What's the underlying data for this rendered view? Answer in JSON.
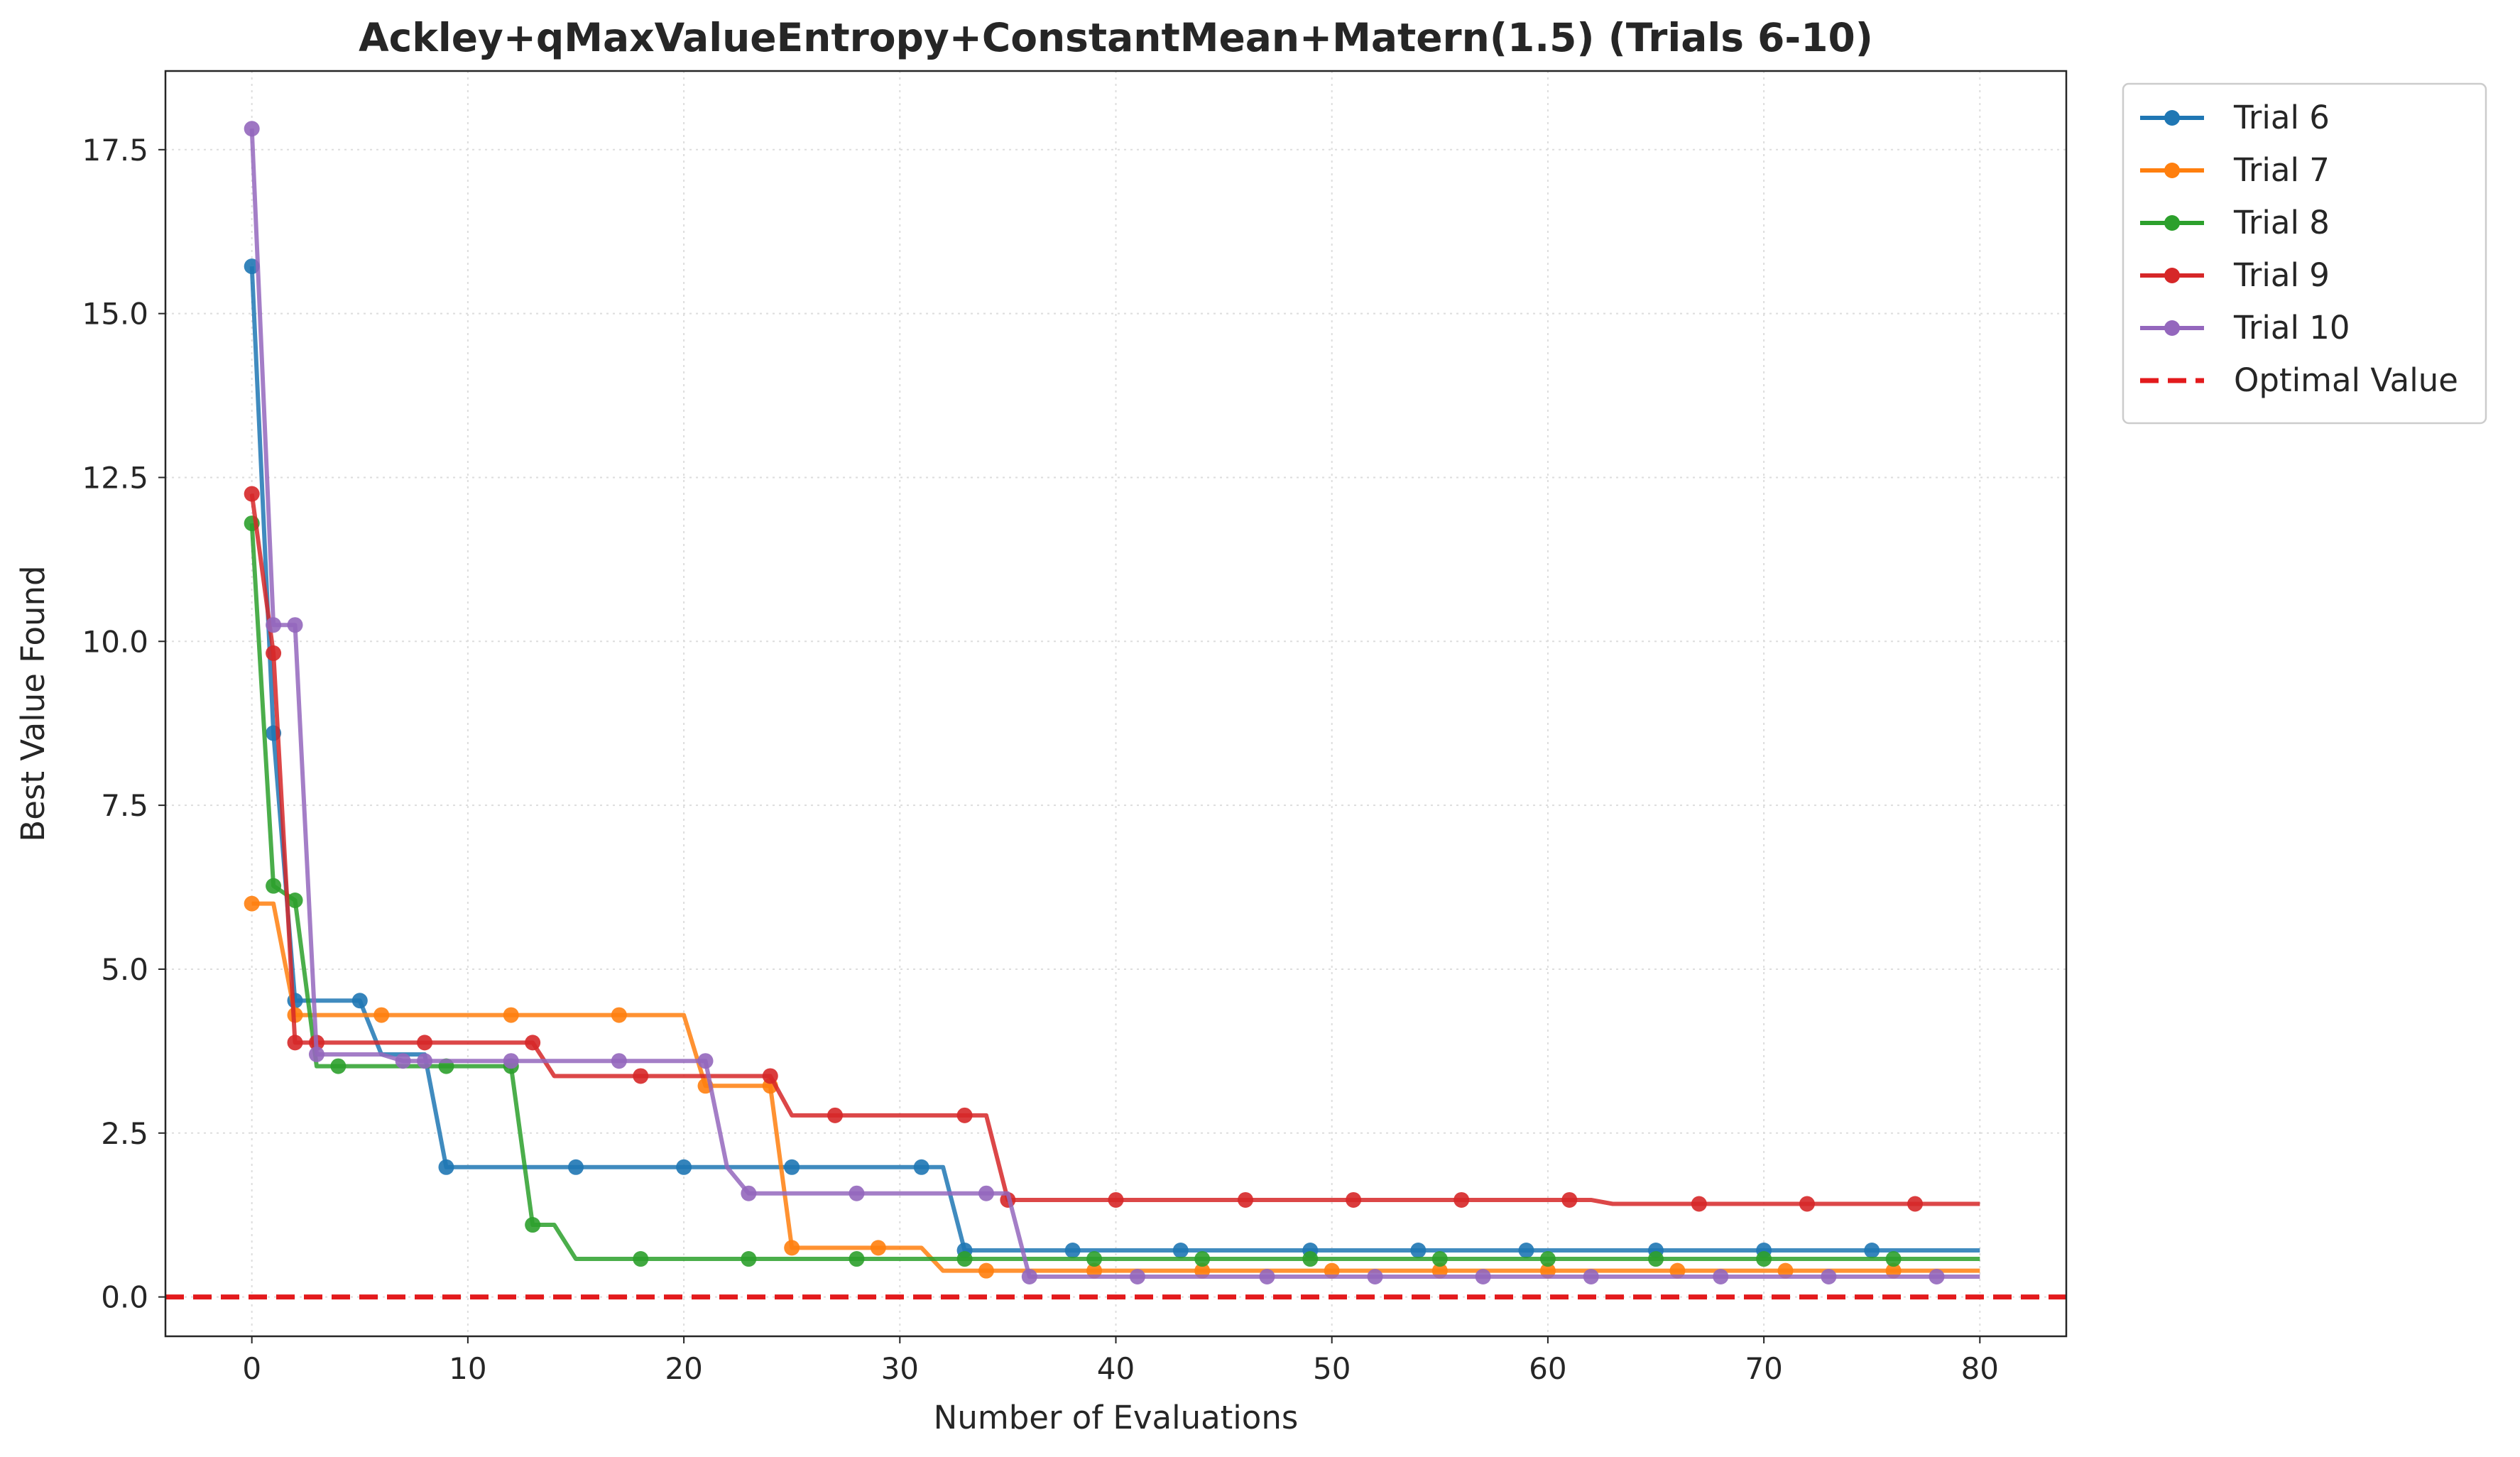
{
  "chart_data": {
    "type": "line",
    "title": "Ackley+qMaxValueEntropy+ConstantMean+Matern(1.5) (Trials 6-10)",
    "xlabel": "Number of Evaluations",
    "ylabel": "Best Value Found",
    "xlim": [
      -4,
      84
    ],
    "ylim": [
      -0.6,
      18.7
    ],
    "xticks": [
      0,
      10,
      20,
      30,
      40,
      50,
      60,
      70,
      80
    ],
    "xtick_labels": [
      "0",
      "10",
      "20",
      "30",
      "40",
      "50",
      "60",
      "70",
      "80"
    ],
    "yticks": [
      0,
      2.5,
      5,
      7.5,
      10,
      12.5,
      15,
      17.5
    ],
    "ytick_labels": [
      "0.0",
      "2.5",
      "5.0",
      "7.5",
      "10.0",
      "12.5",
      "15.0",
      "17.5"
    ],
    "grid": true,
    "legend_position": "outside-upper-right",
    "series": [
      {
        "name": "Trial 6",
        "color": "#1f77b4",
        "steps": [
          [
            0,
            15.72
          ],
          [
            1,
            8.6
          ],
          [
            2,
            4.52
          ],
          [
            6,
            3.7
          ],
          [
            9,
            1.98
          ],
          [
            33,
            0.71
          ],
          [
            80,
            0.71
          ]
        ],
        "markers": [
          0,
          1,
          2,
          5,
          9,
          15,
          20,
          25,
          31,
          33,
          38,
          43,
          49,
          54,
          59,
          65,
          70,
          75
        ]
      },
      {
        "name": "Trial 7",
        "color": "#ff7f0e",
        "steps": [
          [
            0,
            6.0
          ],
          [
            2,
            4.3
          ],
          [
            21,
            3.22
          ],
          [
            25,
            0.75
          ],
          [
            32,
            0.4
          ],
          [
            80,
            0.4
          ]
        ],
        "markers": [
          0,
          2,
          6,
          12,
          17,
          21,
          24,
          25,
          29,
          34,
          39,
          44,
          50,
          55,
          60,
          66,
          71,
          76
        ]
      },
      {
        "name": "Trial 8",
        "color": "#2ca02c",
        "steps": [
          [
            0,
            11.8
          ],
          [
            1,
            6.27
          ],
          [
            2,
            6.05
          ],
          [
            3,
            3.52
          ],
          [
            13,
            1.1
          ],
          [
            15,
            0.58
          ],
          [
            80,
            0.58
          ]
        ],
        "markers": [
          0,
          1,
          2,
          4,
          9,
          12,
          13,
          18,
          23,
          28,
          33,
          39,
          44,
          49,
          55,
          60,
          65,
          70,
          76
        ]
      },
      {
        "name": "Trial 9",
        "color": "#d62728",
        "steps": [
          [
            0,
            12.25
          ],
          [
            1,
            9.82
          ],
          [
            2,
            3.88
          ],
          [
            14,
            3.37
          ],
          [
            25,
            2.77
          ],
          [
            35,
            1.48
          ],
          [
            63,
            1.42
          ],
          [
            80,
            1.42
          ]
        ],
        "markers": [
          0,
          1,
          2,
          3,
          8,
          13,
          18,
          24,
          27,
          33,
          35,
          40,
          46,
          51,
          56,
          61,
          67,
          72,
          77
        ]
      },
      {
        "name": "Trial 10",
        "color": "#9467bd",
        "steps": [
          [
            0,
            17.82
          ],
          [
            1,
            10.25
          ],
          [
            3,
            3.7
          ],
          [
            7,
            3.6
          ],
          [
            22,
            1.98
          ],
          [
            23,
            1.58
          ],
          [
            36,
            0.31
          ],
          [
            80,
            0.31
          ]
        ],
        "markers": [
          0,
          1,
          2,
          3,
          7,
          8,
          12,
          17,
          21,
          23,
          28,
          34,
          36,
          41,
          47,
          52,
          57,
          62,
          68,
          73,
          78
        ]
      }
    ],
    "reference_line": {
      "name": "Optimal Value",
      "value": 0.0,
      "color": "#e31a1c"
    }
  }
}
